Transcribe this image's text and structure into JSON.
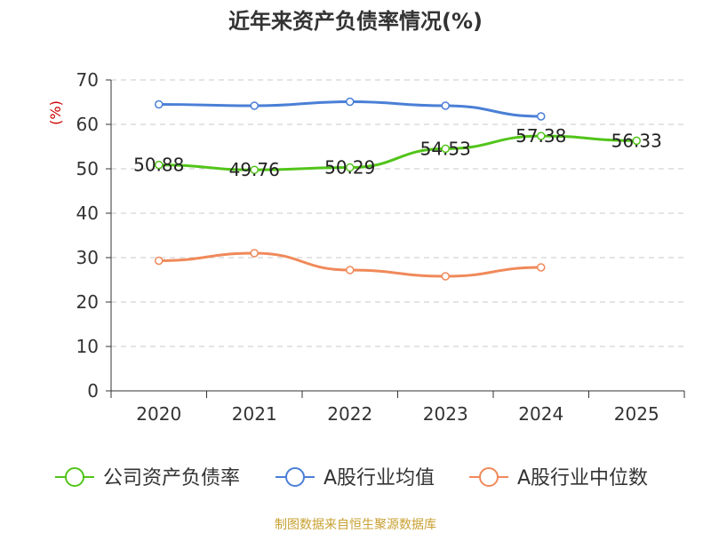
{
  "chart_data": {
    "type": "line",
    "title": "近年来资产负债率情况(%)",
    "ylabel": "(%)",
    "xlabel": "",
    "categories": [
      "2020",
      "2021",
      "2022",
      "2023",
      "2024",
      "2025"
    ],
    "ylim": [
      0,
      70
    ],
    "yticks": [
      "0",
      "10",
      "20",
      "30",
      "40",
      "50",
      "60",
      "70"
    ],
    "grid": true,
    "legend_position": "bottom",
    "series": [
      {
        "name": "公司资产负债率",
        "color": "#52c41a",
        "values": [
          50.88,
          49.76,
          50.29,
          54.53,
          57.38,
          56.33
        ],
        "labels": [
          "50.88",
          "49.76",
          "50.29",
          "54.53",
          "57.38",
          "56.33"
        ]
      },
      {
        "name": "A股行业均值",
        "color": "#4a7fd6",
        "values": [
          64.5,
          64.2,
          65.1,
          64.2,
          61.8,
          null
        ]
      },
      {
        "name": "A股行业中位数",
        "color": "#f0895a",
        "values": [
          29.3,
          31.0,
          27.2,
          25.8,
          27.8,
          null
        ]
      }
    ]
  },
  "source": "制图数据来自恒生聚源数据库"
}
